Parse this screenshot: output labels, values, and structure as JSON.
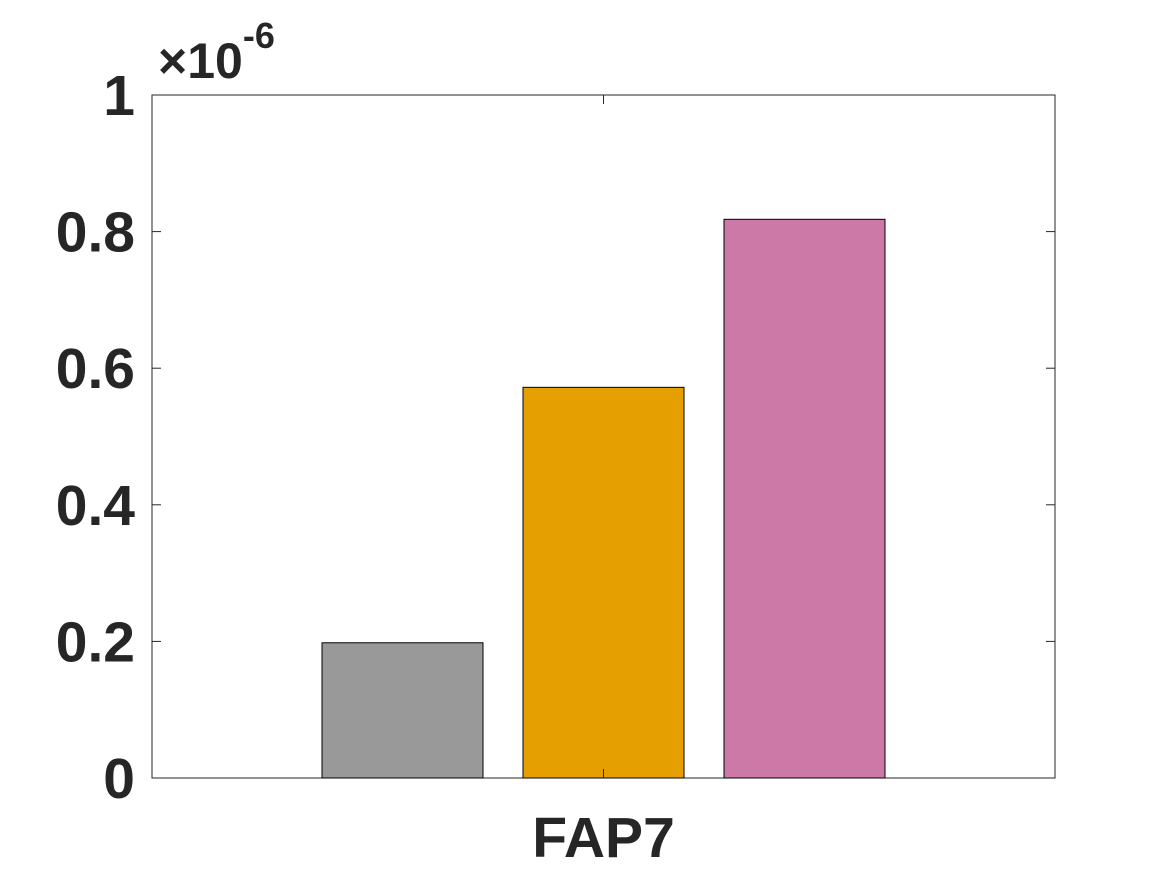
{
  "chart_data": {
    "type": "bar",
    "categories": [
      "FAP7"
    ],
    "series": [
      {
        "values": [
          1.98e-07
        ],
        "color": "#999999"
      },
      {
        "values": [
          5.72e-07
        ],
        "color": "#E69F00"
      },
      {
        "values": [
          8.18e-07
        ],
        "color": "#CC79A7"
      }
    ],
    "ylim": [
      0,
      1e-06
    ],
    "yticks": [
      0,
      0.2,
      0.4,
      0.6,
      0.8,
      1
    ],
    "ytick_labels": [
      "0",
      "0.2",
      "0.4",
      "0.6",
      "0.8",
      "1"
    ],
    "exponent_label": {
      "prefix": "×10",
      "power": "-6"
    },
    "title": "",
    "xlabel": "",
    "ylabel": "",
    "grid": false,
    "legend": null
  }
}
